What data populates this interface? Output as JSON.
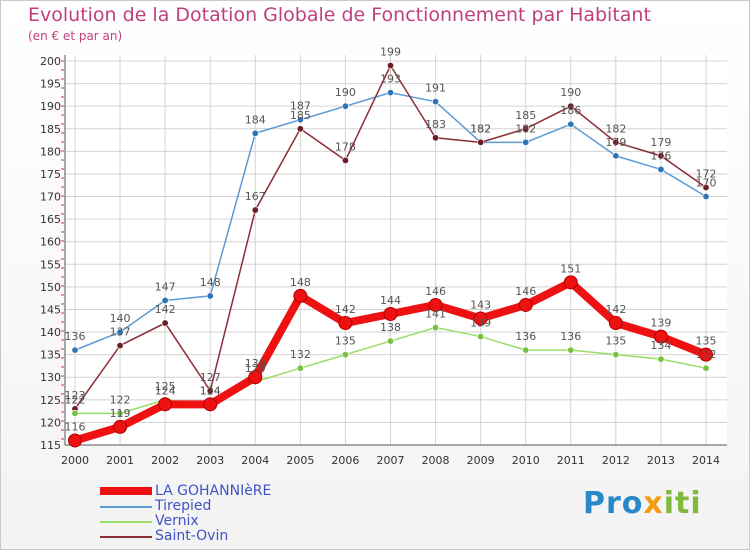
{
  "header": {
    "title": "Evolution de la Dotation Globale de Fonctionnement par Habitant",
    "subtitle": "(en € et par an)"
  },
  "logo": {
    "text_part1": "Pro",
    "text_part2": "x",
    "text_part3": "iti"
  },
  "colors": {
    "background": "#ffffff",
    "grid": "#cccccc",
    "title": "#c0407e",
    "legend_text": "#3f52c6"
  },
  "chart_data": {
    "type": "line",
    "title": "Evolution de la Dotation Globale de Fonctionnement par Habitant",
    "ylabel": "(en € et par an)",
    "xlabel": "",
    "x": [
      "2000",
      "2001",
      "2002",
      "2003",
      "2004",
      "2005",
      "2006",
      "2007",
      "2008",
      "2009",
      "2010",
      "2011",
      "2012",
      "2013",
      "2014"
    ],
    "ylim": [
      115,
      200
    ],
    "yticks": [
      115,
      120,
      125,
      130,
      135,
      140,
      145,
      150,
      155,
      160,
      165,
      170,
      175,
      180,
      185,
      190,
      195,
      200
    ],
    "grid": true,
    "legend_position": "bottom-left",
    "series": [
      {
        "name": "LA GOHANNIèRE",
        "color": "#ee1111",
        "point_color": "#ee1111",
        "emphasis": true,
        "values": [
          116,
          119,
          124,
          124,
          130,
          148,
          142,
          144,
          146,
          143,
          146,
          151,
          142,
          139,
          135
        ]
      },
      {
        "name": "Tirepied",
        "color": "#5b9bd5",
        "point_color": "#2e75b6",
        "emphasis": false,
        "values": [
          136,
          140,
          147,
          148,
          184,
          187,
          190,
          193,
          191,
          182,
          182,
          186,
          179,
          176,
          170
        ]
      },
      {
        "name": "Vernix",
        "color": "#99dd66",
        "point_color": "#77c040",
        "emphasis": false,
        "values": [
          122,
          122,
          125,
          124,
          129,
          132,
          135,
          138,
          141,
          139,
          136,
          136,
          135,
          134,
          132
        ]
      },
      {
        "name": "Saint-Ovin",
        "color": "#8b2e35",
        "point_color": "#6b1c24",
        "emphasis": false,
        "values": [
          123,
          137,
          142,
          127,
          167,
          185,
          178,
          199,
          183,
          182,
          185,
          190,
          182,
          179,
          172
        ]
      }
    ]
  }
}
